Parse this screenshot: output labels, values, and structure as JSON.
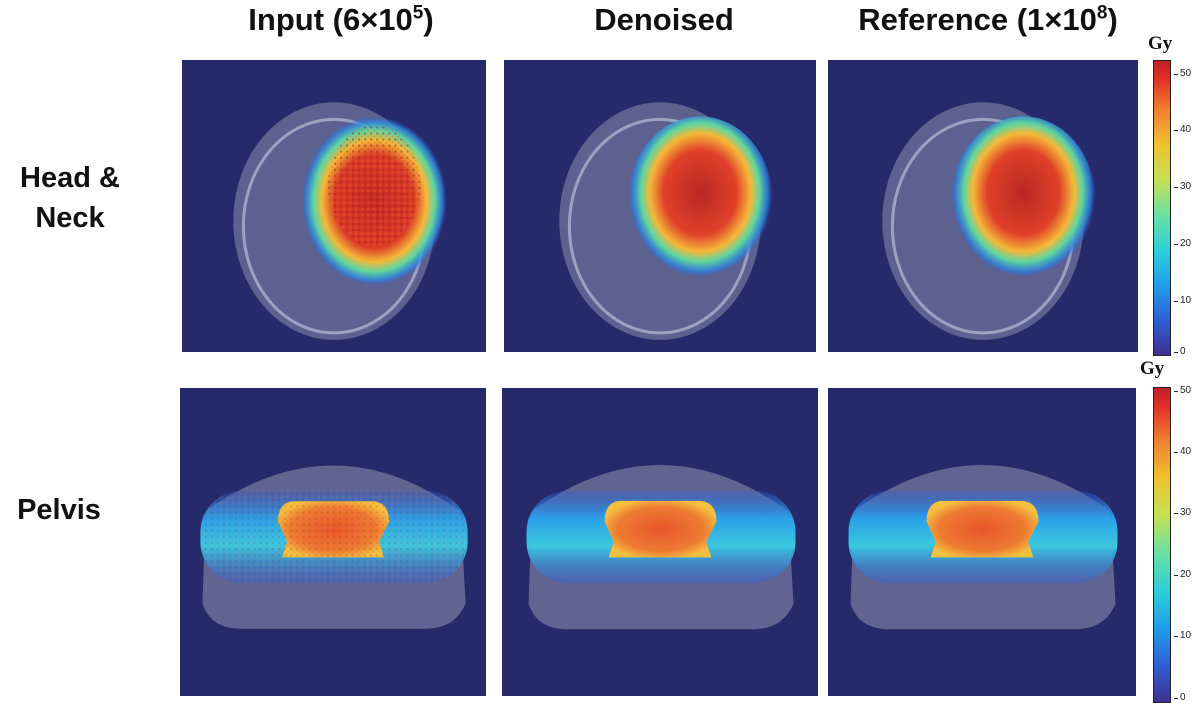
{
  "columns": {
    "input": {
      "label": "Input (6×10",
      "exp": "5",
      "close": ")"
    },
    "denoised": {
      "label": "Denoised"
    },
    "reference": {
      "label": "Reference (1×10",
      "exp": "8",
      "close": ")"
    }
  },
  "rows": {
    "head_neck": {
      "line1": "Head &",
      "line2": "Neck"
    },
    "pelvis": {
      "label": "Pelvis"
    }
  },
  "colorbars": {
    "top": {
      "unit": "Gy",
      "ticks": [
        "50",
        "40",
        "30",
        "20",
        "10",
        "0"
      ]
    },
    "bottom": {
      "unit": "Gy",
      "ticks": [
        "50",
        "40",
        "30",
        "20",
        "10",
        "0"
      ]
    }
  },
  "colors": {
    "background": "#262a6a"
  }
}
